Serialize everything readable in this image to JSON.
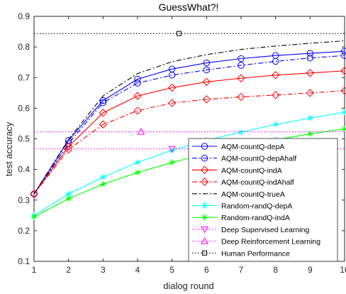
{
  "chart_data": {
    "type": "line",
    "title": "GuessWhat?!",
    "xlabel": "dialog round",
    "ylabel": "test accuracy",
    "xlim": [
      1,
      10
    ],
    "ylim": [
      0.1,
      0.9
    ],
    "x": [
      1,
      2,
      3,
      4,
      5,
      6,
      7,
      8,
      9,
      10
    ],
    "xticks": [
      "1",
      "2",
      "3",
      "4",
      "5",
      "6",
      "7",
      "8",
      "9",
      "10"
    ],
    "yticks": [
      "0.1",
      "0.2",
      "0.3",
      "0.4",
      "0.5",
      "0.6",
      "0.7",
      "0.8",
      "0.9"
    ],
    "grid": false,
    "legend_position": "bottom-right",
    "series": [
      {
        "name": "AQM-countQ-depA",
        "color": "#0000ff",
        "line": "solid",
        "marker": "circle",
        "values": [
          0.32,
          0.495,
          0.625,
          0.695,
          0.728,
          0.748,
          0.762,
          0.772,
          0.779,
          0.786
        ]
      },
      {
        "name": "AQM-countQ-depAhalf",
        "color": "#0000ff",
        "line": "dashdot",
        "marker": "circle",
        "values": [
          0.32,
          0.485,
          0.618,
          0.682,
          0.708,
          0.725,
          0.74,
          0.753,
          0.764,
          0.772
        ]
      },
      {
        "name": "AQM-countQ-indA",
        "color": "#ff0000",
        "line": "solid",
        "marker": "diamond",
        "values": [
          0.32,
          0.475,
          0.585,
          0.64,
          0.667,
          0.686,
          0.698,
          0.708,
          0.715,
          0.722
        ]
      },
      {
        "name": "AQM-countQ-indAhalf",
        "color": "#ff0000",
        "line": "dashdot",
        "marker": "diamond",
        "values": [
          0.32,
          0.465,
          0.547,
          0.592,
          0.617,
          0.629,
          0.637,
          0.643,
          0.65,
          0.657
        ]
      },
      {
        "name": "AQM-countQ-trueA",
        "color": "#000000",
        "line": "dashdot",
        "marker": "none",
        "values": [
          0.32,
          0.498,
          0.64,
          0.713,
          0.752,
          0.775,
          0.792,
          0.803,
          0.812,
          0.82
        ]
      },
      {
        "name": "Random-randQ-depA",
        "color": "#00ffff",
        "line": "solid",
        "marker": "star",
        "values": [
          0.25,
          0.32,
          0.375,
          0.423,
          0.463,
          0.495,
          0.522,
          0.547,
          0.568,
          0.587
        ]
      },
      {
        "name": "Random-randQ-indA",
        "color": "#00ff00",
        "line": "solid",
        "marker": "star",
        "values": [
          0.245,
          0.305,
          0.352,
          0.39,
          0.423,
          0.451,
          0.475,
          0.497,
          0.516,
          0.533
        ]
      },
      {
        "name": "Deep Supervised Learning",
        "color": "#ff00ff",
        "line": "dotted",
        "marker": "triangle-down",
        "values": [
          0.467,
          0.467,
          0.467,
          0.467,
          0.467,
          0.467,
          0.467,
          0.467,
          0.467,
          0.467
        ],
        "marker_x": 5
      },
      {
        "name": "Deep Reinforcement Learning",
        "color": "#ff00ff",
        "line": "dotted",
        "marker": "triangle-up",
        "values": [
          0.523,
          0.523,
          0.523,
          0.523,
          0.523,
          0.523,
          0.523,
          0.523,
          0.523,
          0.523
        ],
        "marker_x": 4.1
      },
      {
        "name": "Human Performance",
        "color": "#000000",
        "line": "dotted",
        "marker": "square",
        "values": [
          0.844,
          0.844,
          0.844,
          0.844,
          0.844,
          0.844,
          0.844,
          0.844,
          0.844,
          0.844
        ],
        "marker_x": 5.2
      }
    ]
  }
}
